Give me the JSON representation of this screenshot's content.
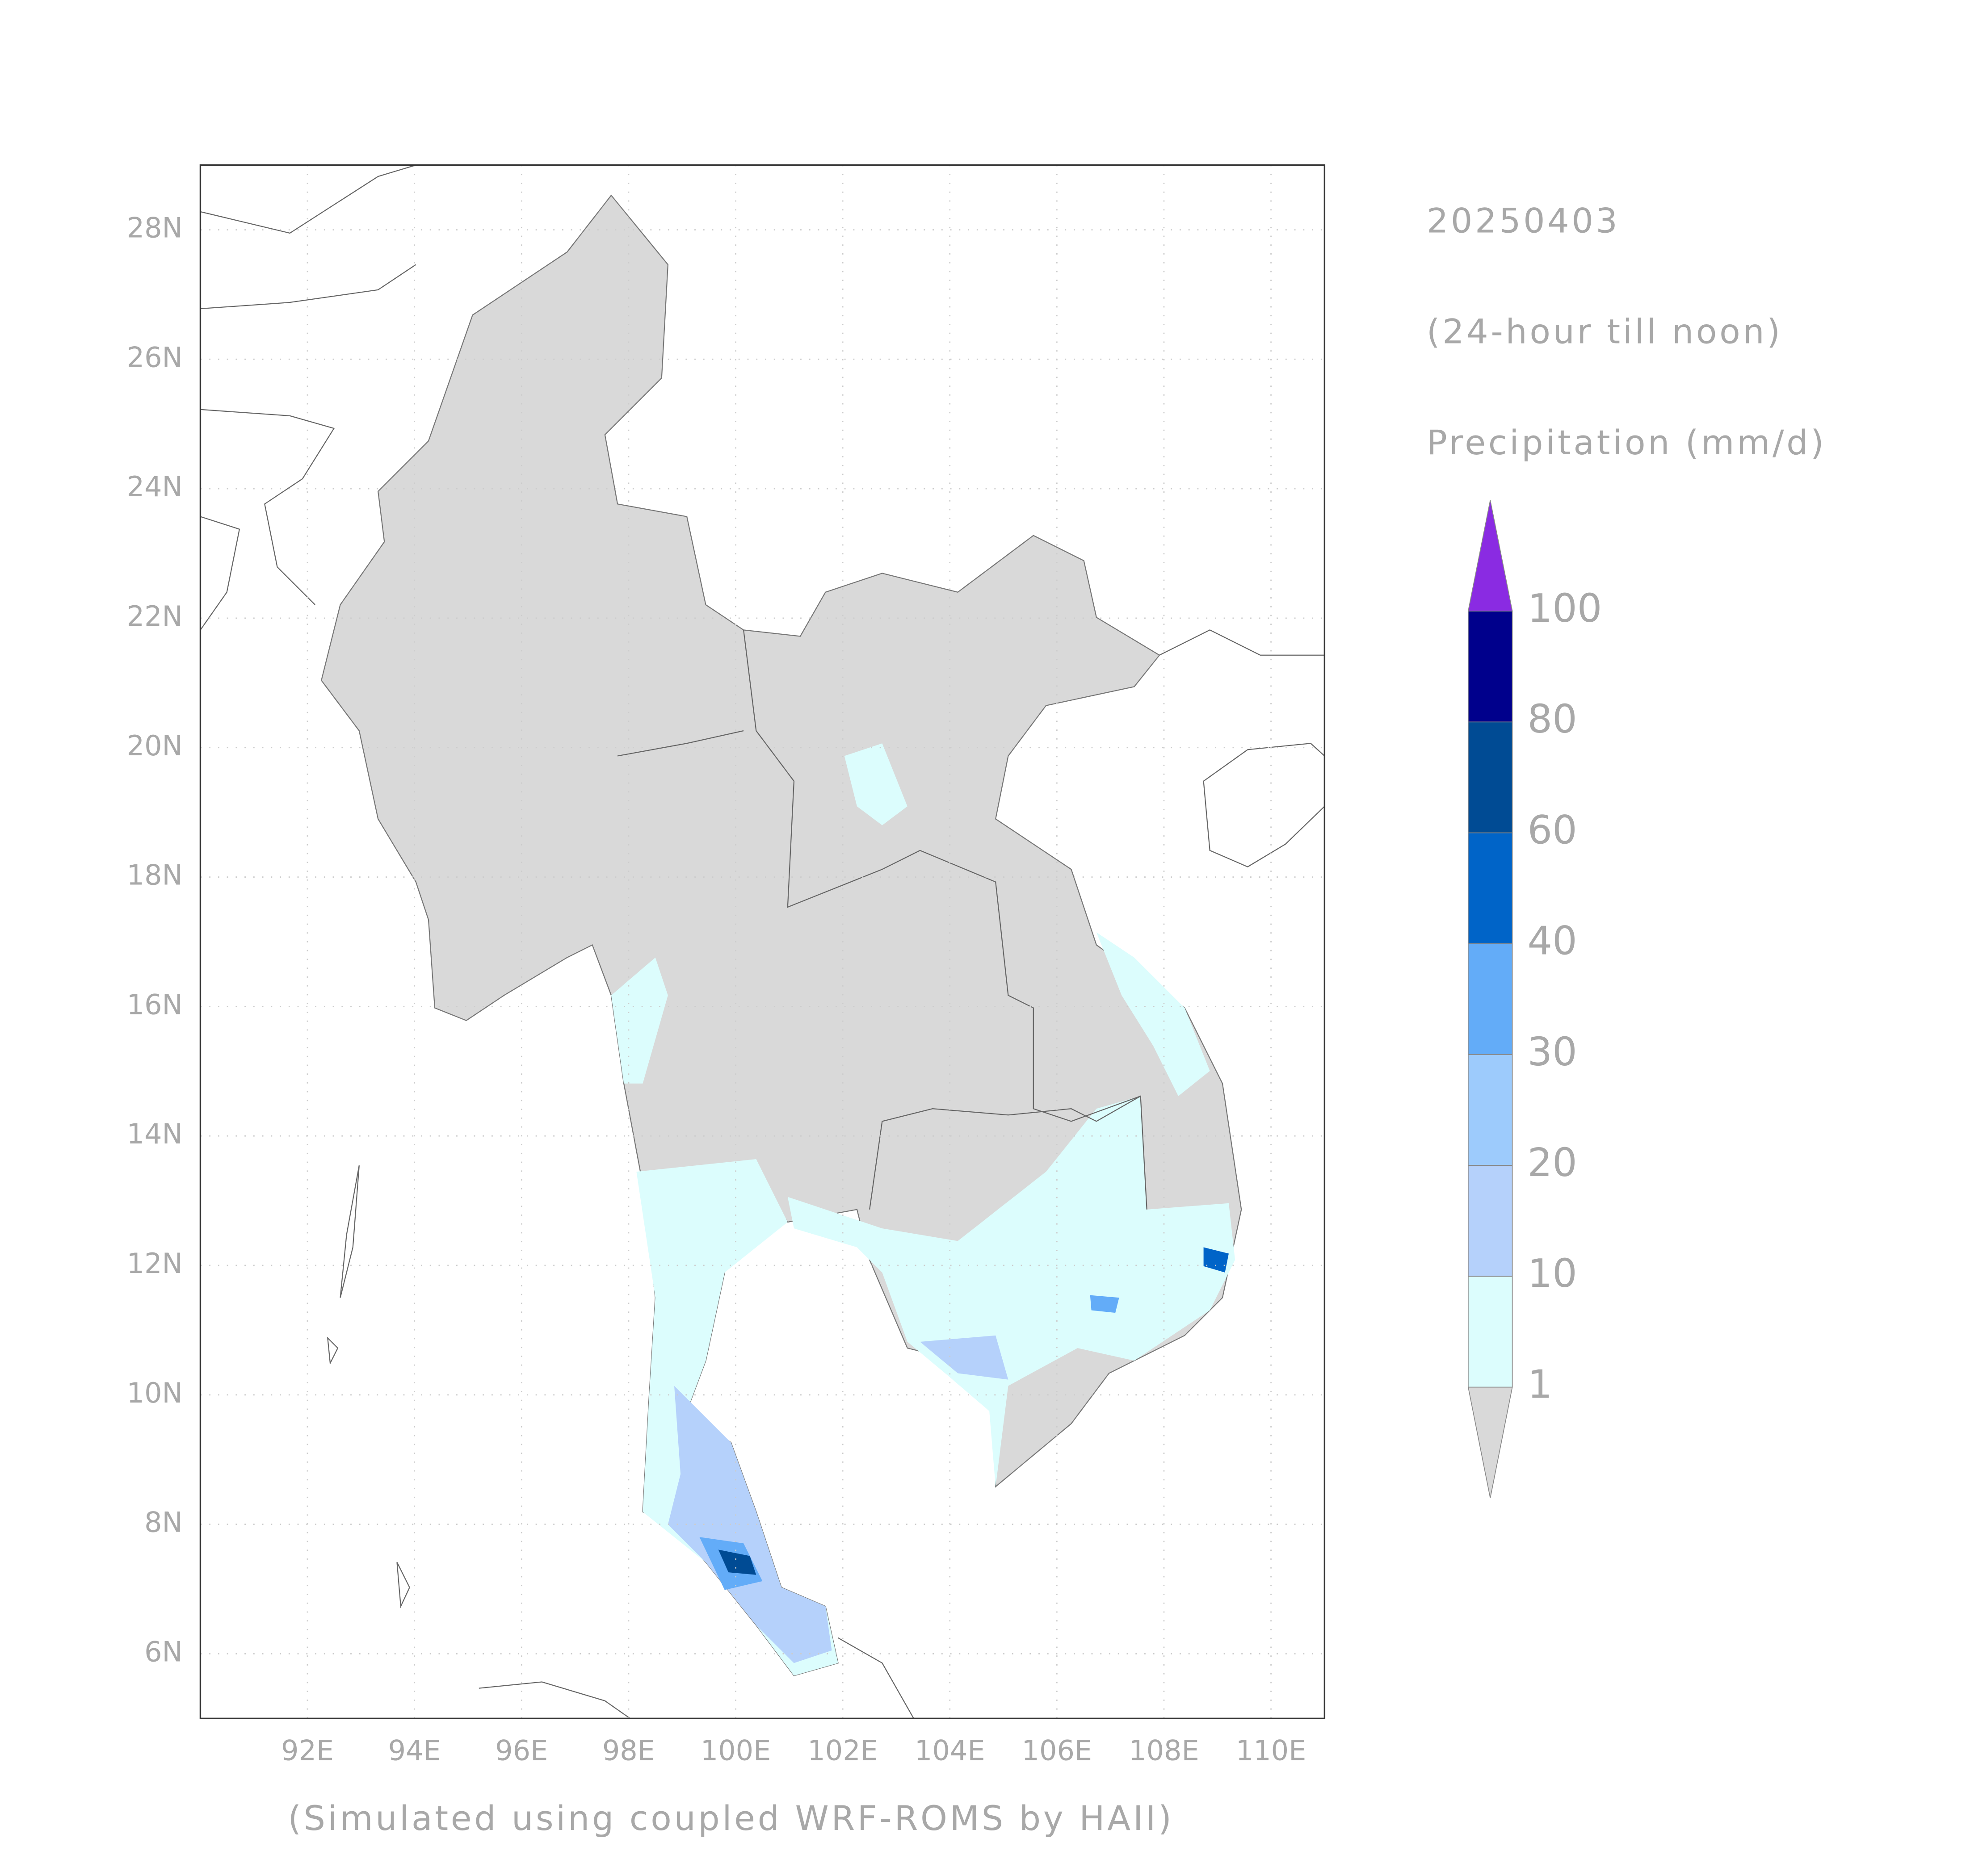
{
  "chart_data": {
    "type": "map",
    "date": "20250403",
    "subtitle": "(24-hour till noon)",
    "legend_title": "Precipitation (mm/d)",
    "footer": "(Simulated using coupled WRF-ROMS by HAII)",
    "xlim": [
      90,
      111
    ],
    "ylim": [
      5,
      29
    ],
    "xticks": [
      {
        "value": 92,
        "label": "92E"
      },
      {
        "value": 94,
        "label": "94E"
      },
      {
        "value": 96,
        "label": "96E"
      },
      {
        "value": 98,
        "label": "98E"
      },
      {
        "value": 100,
        "label": "100E"
      },
      {
        "value": 102,
        "label": "102E"
      },
      {
        "value": 104,
        "label": "104E"
      },
      {
        "value": 106,
        "label": "106E"
      },
      {
        "value": 108,
        "label": "108E"
      },
      {
        "value": 110,
        "label": "110E"
      }
    ],
    "yticks": [
      {
        "value": 6,
        "label": "6N"
      },
      {
        "value": 8,
        "label": "8N"
      },
      {
        "value": 10,
        "label": "10N"
      },
      {
        "value": 12,
        "label": "12N"
      },
      {
        "value": 14,
        "label": "14N"
      },
      {
        "value": 16,
        "label": "16N"
      },
      {
        "value": 18,
        "label": "18N"
      },
      {
        "value": 20,
        "label": "20N"
      },
      {
        "value": 22,
        "label": "22N"
      },
      {
        "value": 24,
        "label": "24N"
      },
      {
        "value": 26,
        "label": "26N"
      },
      {
        "value": 28,
        "label": "28N"
      }
    ],
    "grid": true,
    "colorbar": {
      "levels": [
        1,
        10,
        20,
        30,
        40,
        60,
        80,
        100
      ],
      "colors": [
        "#d9d9d9",
        "#dcfdfd",
        "#b5d1fb",
        "#9dcbfc",
        "#63acf8",
        "#0064c8",
        "#004b94",
        "#00008c",
        "#8a2be2"
      ]
    }
  }
}
